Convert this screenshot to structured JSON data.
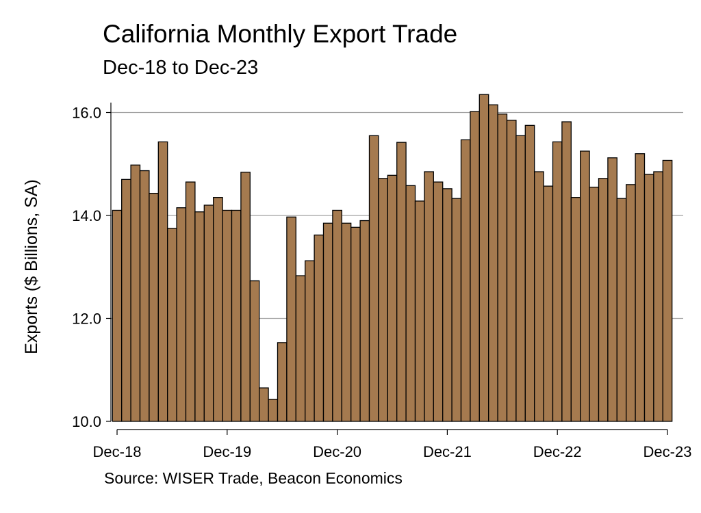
{
  "chart_data": {
    "type": "bar",
    "title": "California Monthly Export Trade",
    "subtitle": "Dec-18 to Dec-23",
    "ylabel": "Exports ($ Billions, SA)",
    "xlabel": "",
    "source": "Source: WISER Trade, Beacon Economics",
    "ylim": [
      10,
      16.6
    ],
    "yticks": [
      "10.0",
      "12.0",
      "14.0",
      "16.0"
    ],
    "ytick_values": [
      10,
      12,
      14,
      16
    ],
    "xtick_labels": [
      "Dec-18",
      "Dec-19",
      "Dec-20",
      "Dec-21",
      "Dec-22",
      "Dec-23"
    ],
    "xtick_every_n_months": 12,
    "grid": "horizontal",
    "bar_color": "#A57A4F",
    "bar_edge_color": "#000000",
    "values": [
      14.1,
      14.7,
      14.98,
      14.87,
      14.43,
      15.43,
      13.75,
      14.15,
      14.65,
      14.07,
      14.2,
      14.35,
      14.1,
      14.1,
      14.84,
      12.73,
      10.65,
      10.43,
      11.53,
      13.97,
      12.83,
      13.12,
      13.62,
      13.85,
      14.1,
      13.85,
      13.77,
      13.9,
      15.55,
      14.72,
      14.78,
      15.42,
      14.58,
      14.28,
      14.85,
      14.65,
      14.52,
      14.33,
      15.47,
      16.02,
      16.35,
      16.15,
      15.97,
      15.85,
      15.55,
      15.75,
      14.85,
      14.57,
      15.43,
      15.82,
      14.35,
      15.25,
      14.55,
      14.72,
      15.12,
      14.33,
      14.6,
      15.2,
      14.8,
      14.85,
      15.07
    ]
  }
}
